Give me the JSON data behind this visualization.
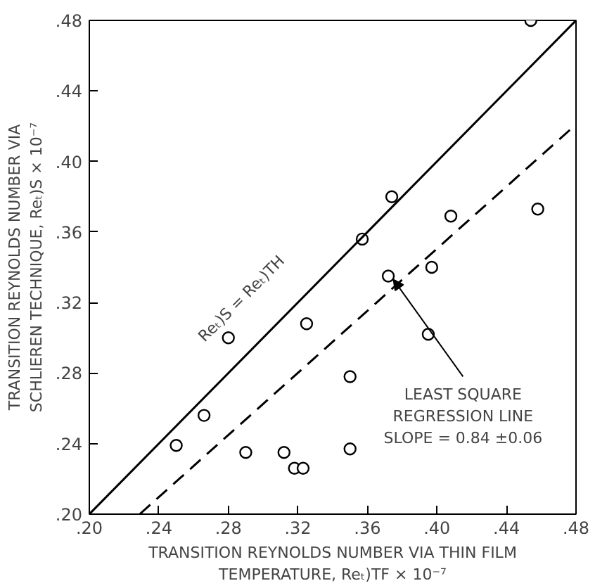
{
  "chart_data": {
    "type": "scatter",
    "xlabel": "TRANSITION REYNOLDS NUMBER VIA THIN FILM\nTEMPERATURE, Reₜ)TF × 10⁻⁷",
    "ylabel": "TRANSITION REYNOLDS NUMBER VIA\nSCHLIEREN TECHNIQUE, Reₜ)S × 10⁻⁷",
    "xlim": [
      0.2,
      0.48
    ],
    "ylim": [
      0.2,
      0.48
    ],
    "xticks": [
      {
        "value": 0.2,
        "label": ".20"
      },
      {
        "value": 0.24,
        "label": ".24"
      },
      {
        "value": 0.28,
        "label": ".28"
      },
      {
        "value": 0.32,
        "label": ".32"
      },
      {
        "value": 0.36,
        "label": ".36"
      },
      {
        "value": 0.4,
        "label": ".40"
      },
      {
        "value": 0.44,
        "label": ".44"
      },
      {
        "value": 0.48,
        "label": ".48"
      }
    ],
    "yticks": [
      {
        "value": 0.2,
        "label": ".20"
      },
      {
        "value": 0.24,
        "label": ".24"
      },
      {
        "value": 0.28,
        "label": ".28"
      },
      {
        "value": 0.32,
        "label": ".32"
      },
      {
        "value": 0.36,
        "label": ".36"
      },
      {
        "value": 0.4,
        "label": ".40"
      },
      {
        "value": 0.44,
        "label": ".44"
      },
      {
        "value": 0.48,
        "label": ".48"
      }
    ],
    "grid": false,
    "marker": "circle",
    "x": [
      0.25,
      0.266,
      0.28,
      0.29,
      0.325,
      0.312,
      0.318,
      0.323,
      0.35,
      0.35,
      0.372,
      0.397,
      0.395,
      0.454,
      0.458,
      0.374,
      0.357,
      0.408
    ],
    "series": [
      {
        "color": "#000000",
        "values": [
          0.239,
          0.256,
          0.3,
          0.235,
          0.308,
          0.235,
          0.226,
          0.226,
          0.278,
          0.237,
          0.335,
          0.34,
          0.302,
          0.48,
          0.373,
          0.38,
          0.356,
          0.369
        ]
      },
      {
        "type": "line",
        "name": "Reₜ)S = Reₜ)TH",
        "color": "#000000",
        "line_style": "solid",
        "marker": "none",
        "x": [
          0.2,
          0.48
        ],
        "values": [
          0.2,
          0.48
        ]
      },
      {
        "type": "line",
        "color": "#000000",
        "line_style": "dashed",
        "marker": "none",
        "x": [
          0.229,
          0.48
        ],
        "values": [
          0.2,
          0.421
        ]
      }
    ],
    "annotations": [
      {
        "text": "LEAST SQUARE\nREGRESSION LINE\nSLOPE = 0.84 ±0.06",
        "x": 0.375,
        "y": 0.333
      }
    ]
  }
}
